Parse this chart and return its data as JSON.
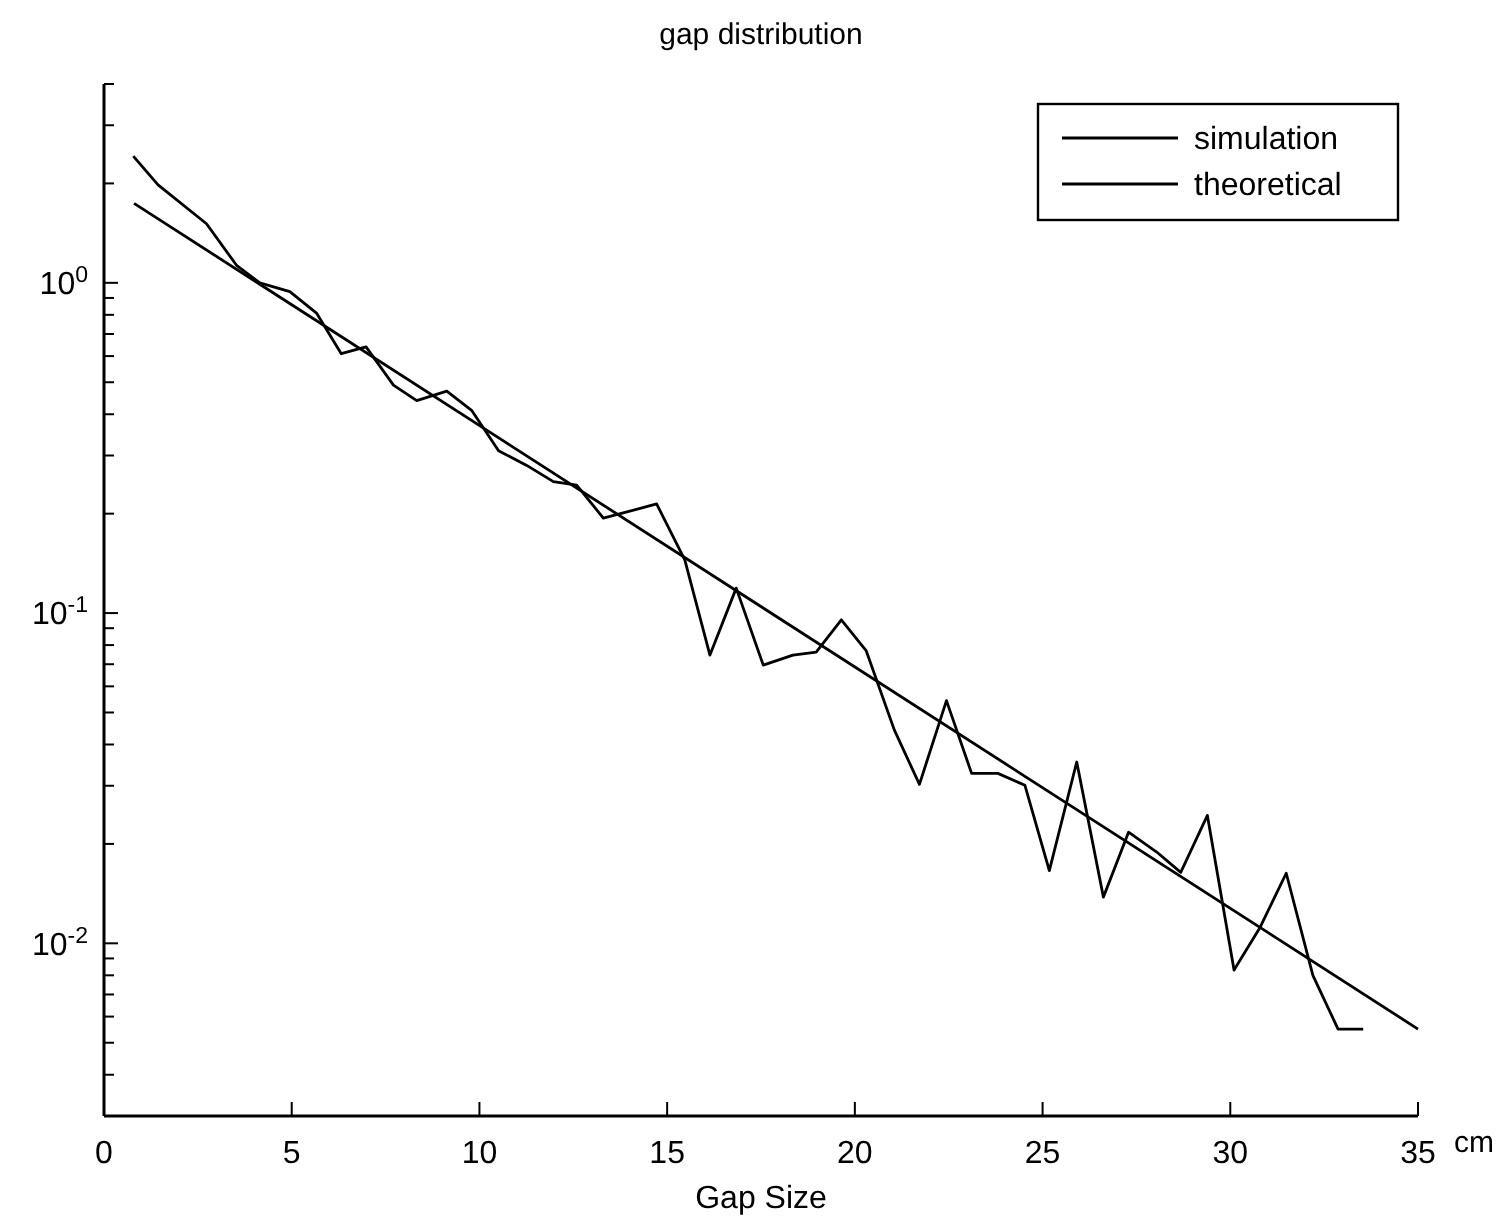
{
  "chart_data": {
    "type": "line",
    "title": "gap distribution",
    "xlabel": "Gap Size",
    "annotations": [
      "cm"
    ],
    "log": "y",
    "legend": "top right",
    "grid": false,
    "xlim": [
      0,
      35
    ],
    "xticks": [
      0,
      5,
      10,
      15,
      20,
      25,
      30,
      35
    ],
    "ylim": [
      0.003,
      4
    ],
    "yticks": [
      {
        "value": 0.003,
        "label": null
      },
      {
        "value": 0.004,
        "label": null
      },
      {
        "value": 0.005,
        "label": null
      },
      {
        "value": 0.006,
        "label": null
      },
      {
        "value": 0.007,
        "label": null
      },
      {
        "value": 0.008,
        "label": null
      },
      {
        "value": 0.009,
        "label": null
      },
      {
        "value": 0.01,
        "label": "10$^{-2}$"
      },
      {
        "value": 0.02,
        "label": null
      },
      {
        "value": 0.03,
        "label": null
      },
      {
        "value": 0.04,
        "label": null
      },
      {
        "value": 0.05,
        "label": null
      },
      {
        "value": 0.06,
        "label": null
      },
      {
        "value": 0.07,
        "label": null
      },
      {
        "value": 0.08,
        "label": null
      },
      {
        "value": 0.09,
        "label": null
      },
      {
        "value": 0.1,
        "label": "10$^{-1}$"
      },
      {
        "value": 0.2,
        "label": null
      },
      {
        "value": 0.3,
        "label": null
      },
      {
        "value": 0.4,
        "label": null
      },
      {
        "value": 0.5,
        "label": null
      },
      {
        "value": 0.6,
        "label": null
      },
      {
        "value": 0.7,
        "label": null
      },
      {
        "value": 0.8,
        "label": null
      },
      {
        "value": 0.9,
        "label": null
      },
      {
        "value": 1,
        "label": "10$^{0}$"
      },
      {
        "value": 2,
        "label": null
      },
      {
        "value": 3,
        "label": null
      },
      {
        "value": 4,
        "label": null
      }
    ],
    "series": [
      {
        "name": "simulation",
        "color": "#000000",
        "x": [
          0.78,
          1.44,
          2.73,
          3.53,
          4.15,
          4.95,
          5.66,
          6.32,
          6.98,
          7.71,
          8.33,
          9.13,
          9.8,
          10.51,
          11.26,
          11.97,
          12.59,
          13.3,
          13.83,
          14.72,
          15.47,
          16.14,
          16.84,
          17.56,
          18.35,
          18.97,
          19.64,
          20.3,
          21.05,
          21.72,
          22.44,
          23.11,
          23.81,
          24.53,
          25.18,
          25.91,
          26.62,
          27.29,
          28.04,
          28.68,
          29.39,
          30.1,
          30.78,
          31.49,
          32.2,
          32.87,
          33.54
        ],
        "values": [
          2.42,
          1.98,
          1.51,
          1.13,
          1.0,
          0.94,
          0.81,
          0.61,
          0.64,
          0.49,
          0.44,
          0.47,
          0.41,
          0.31,
          0.28,
          0.25,
          0.244,
          0.194,
          0.201,
          0.214,
          0.145,
          0.0746,
          0.119,
          0.0696,
          0.0746,
          0.0762,
          0.0954,
          0.077,
          0.0443,
          0.0303,
          0.0543,
          0.0327,
          0.0327,
          0.0301,
          0.0166,
          0.0354,
          0.0138,
          0.0217,
          0.0189,
          0.0164,
          0.0244,
          0.0083,
          0.0111,
          0.0163,
          0.008,
          0.0055,
          0.0055
        ]
      },
      {
        "name": "theoretical",
        "color": "#000000",
        "x": [
          0.8,
          35
        ],
        "values": [
          1.74,
          0.0055
        ]
      }
    ]
  }
}
